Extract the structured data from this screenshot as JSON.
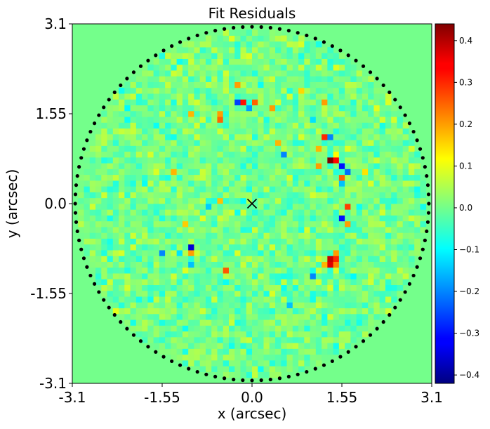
{
  "chart_data": {
    "type": "heatmap",
    "title": "Fit Residuals",
    "xlabel": "x (arcsec)",
    "ylabel": "y (arcsec)",
    "xlim": [
      -3.1,
      3.1
    ],
    "ylim": [
      -3.1,
      3.1
    ],
    "x_ticks": [
      -3.1,
      -1.55,
      0.0,
      1.55,
      3.1
    ],
    "x_tick_labels": [
      "-3.1",
      "-1.55",
      "0.0",
      "1.55",
      "3.1"
    ],
    "y_ticks": [
      -3.1,
      -1.55,
      0.0,
      1.55,
      3.1
    ],
    "y_tick_labels": [
      "-3.1",
      "-1.55",
      "0.0",
      "1.55",
      "3.1"
    ],
    "grid": false,
    "colormap": "jet",
    "mask_radius_arcsec": 3.0,
    "grid_cells_per_axis": 62,
    "cell_size_arcsec": 0.1,
    "background_value": 0.0,
    "noise_amplitude": 0.05,
    "center_marker": {
      "x": 0.0,
      "y": 0.0,
      "symbol": "x"
    },
    "border_dot_color": "#000000",
    "colorbar": {
      "min": -0.42,
      "max": 0.44,
      "ticks": [
        -0.4,
        -0.3,
        -0.2,
        -0.1,
        0.0,
        0.1,
        0.2,
        0.3,
        0.4
      ],
      "tick_labels": [
        "−0.4",
        "−0.3",
        "−0.2",
        "−0.1",
        "0.0",
        "0.1",
        "0.2",
        "0.3",
        "0.4"
      ]
    },
    "notable_residuals": [
      {
        "x": -0.15,
        "y": 1.75,
        "value": 0.32
      },
      {
        "x": -0.25,
        "y": 1.75,
        "value": -0.26
      },
      {
        "x": 1.35,
        "y": 0.75,
        "value": 0.44
      },
      {
        "x": 1.45,
        "y": 0.75,
        "value": 0.33
      },
      {
        "x": 1.55,
        "y": 0.65,
        "value": -0.3
      },
      {
        "x": 1.45,
        "y": 0.85,
        "value": 0.12
      },
      {
        "x": 1.55,
        "y": 0.45,
        "value": 0.25
      },
      {
        "x": 1.65,
        "y": 0.55,
        "value": -0.22
      },
      {
        "x": 1.65,
        "y": -0.05,
        "value": 0.28
      },
      {
        "x": 1.55,
        "y": -0.25,
        "value": -0.3
      },
      {
        "x": 1.65,
        "y": -0.35,
        "value": 0.2
      },
      {
        "x": 1.35,
        "y": -0.95,
        "value": 0.38
      },
      {
        "x": 1.35,
        "y": -1.05,
        "value": 0.36
      },
      {
        "x": 1.45,
        "y": -0.95,
        "value": 0.3
      },
      {
        "x": 1.45,
        "y": -1.05,
        "value": 0.22
      },
      {
        "x": 1.25,
        "y": -1.05,
        "value": 0.18
      },
      {
        "x": 1.45,
        "y": -0.85,
        "value": 0.2
      },
      {
        "x": 1.15,
        "y": 0.65,
        "value": 0.2
      },
      {
        "x": 1.15,
        "y": 0.95,
        "value": 0.18
      },
      {
        "x": 0.45,
        "y": 1.05,
        "value": 0.18
      },
      {
        "x": 0.55,
        "y": 0.85,
        "value": -0.2
      },
      {
        "x": -1.15,
        "y": -0.35,
        "value": 0.16
      },
      {
        "x": -0.55,
        "y": 0.05,
        "value": 0.17
      },
      {
        "x": -0.55,
        "y": 1.45,
        "value": 0.25
      },
      {
        "x": -0.55,
        "y": 1.55,
        "value": 0.2
      },
      {
        "x": -0.05,
        "y": 1.65,
        "value": -0.18
      },
      {
        "x": 0.05,
        "y": 1.75,
        "value": 0.25
      },
      {
        "x": 0.35,
        "y": 1.65,
        "value": 0.2
      },
      {
        "x": 1.05,
        "y": 1.45,
        "value": -0.12
      },
      {
        "x": 1.25,
        "y": 1.15,
        "value": 0.3
      },
      {
        "x": 1.35,
        "y": 1.15,
        "value": -0.2
      },
      {
        "x": 1.55,
        "y": 0.35,
        "value": -0.15
      },
      {
        "x": -1.05,
        "y": -0.75,
        "value": -0.35
      },
      {
        "x": -1.05,
        "y": -0.85,
        "value": 0.2
      },
      {
        "x": -1.55,
        "y": -0.85,
        "value": -0.2
      },
      {
        "x": -1.25,
        "y": -0.85,
        "value": -0.12
      },
      {
        "x": -0.45,
        "y": -1.15,
        "value": 0.26
      },
      {
        "x": -1.05,
        "y": -1.05,
        "value": -0.15
      },
      {
        "x": 1.05,
        "y": -1.25,
        "value": -0.2
      },
      {
        "x": 0.65,
        "y": -1.75,
        "value": -0.15
      },
      {
        "x": 1.25,
        "y": 1.75,
        "value": 0.2
      },
      {
        "x": -1.35,
        "y": 0.55,
        "value": 0.18
      },
      {
        "x": -0.75,
        "y": -0.05,
        "value": -0.14
      },
      {
        "x": 0.85,
        "y": 1.95,
        "value": 0.15
      },
      {
        "x": -0.25,
        "y": 2.05,
        "value": 0.2
      },
      {
        "x": -1.05,
        "y": 1.55,
        "value": 0.18
      },
      {
        "x": 1.95,
        "y": 0.55,
        "value": 0.14
      },
      {
        "x": 1.75,
        "y": -1.25,
        "value": -0.1
      }
    ]
  }
}
